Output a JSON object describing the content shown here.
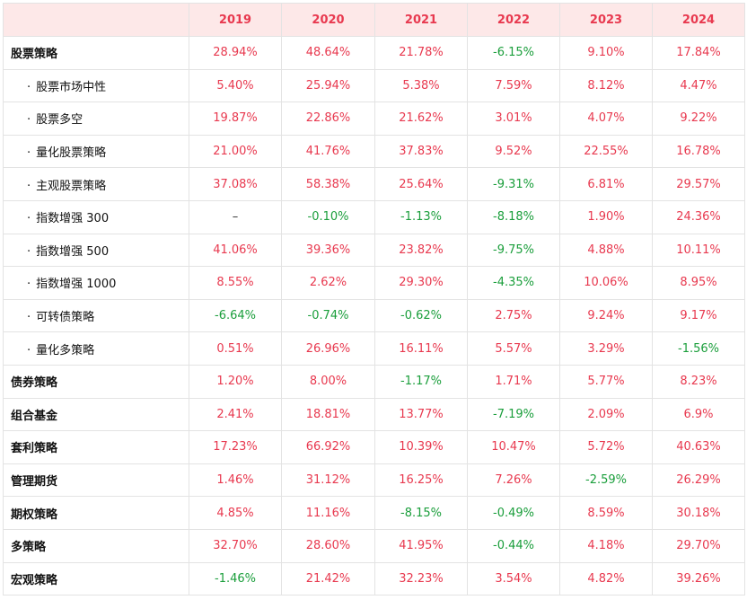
{
  "colors": {
    "header_bg": "#fde8e8",
    "header_text": "#e8394f",
    "positive": "#e8394f",
    "negative": "#1a9e3b",
    "border": "#e3e3e3"
  },
  "table": {
    "corner": "",
    "years": [
      "2019",
      "2020",
      "2021",
      "2022",
      "2023",
      "2024"
    ],
    "rows": [
      {
        "name": "股票策略",
        "sub": false,
        "values": [
          "28.94%",
          "48.64%",
          "21.78%",
          "-6.15%",
          "9.10%",
          "17.84%"
        ]
      },
      {
        "name": "股票市场中性",
        "sub": true,
        "values": [
          "5.40%",
          "25.94%",
          "5.38%",
          "7.59%",
          "8.12%",
          "4.47%"
        ]
      },
      {
        "name": "股票多空",
        "sub": true,
        "values": [
          "19.87%",
          "22.86%",
          "21.62%",
          "3.01%",
          "4.07%",
          "9.22%"
        ]
      },
      {
        "name": "量化股票策略",
        "sub": true,
        "values": [
          "21.00%",
          "41.76%",
          "37.83%",
          "9.52%",
          "22.55%",
          "16.78%"
        ]
      },
      {
        "name": "主观股票策略",
        "sub": true,
        "values": [
          "37.08%",
          "58.38%",
          "25.64%",
          "-9.31%",
          "6.81%",
          "29.57%"
        ]
      },
      {
        "name": "指数增强 300",
        "sub": true,
        "values": [
          "–",
          "-0.10%",
          "-1.13%",
          "-8.18%",
          "1.90%",
          "24.36%"
        ]
      },
      {
        "name": "指数增强 500",
        "sub": true,
        "values": [
          "41.06%",
          "39.36%",
          "23.82%",
          "-9.75%",
          "4.88%",
          "10.11%"
        ]
      },
      {
        "name": "指数增强 1000",
        "sub": true,
        "values": [
          "8.55%",
          "2.62%",
          "29.30%",
          "-4.35%",
          "10.06%",
          "8.95%"
        ]
      },
      {
        "name": "可转债策略",
        "sub": true,
        "values": [
          "-6.64%",
          "-0.74%",
          "-0.62%",
          "2.75%",
          "9.24%",
          "9.17%"
        ]
      },
      {
        "name": "量化多策略",
        "sub": true,
        "values": [
          "0.51%",
          "26.96%",
          "16.11%",
          "5.57%",
          "3.29%",
          "-1.56%"
        ]
      },
      {
        "name": "债券策略",
        "sub": false,
        "values": [
          "1.20%",
          "8.00%",
          "-1.17%",
          "1.71%",
          "5.77%",
          "8.23%"
        ]
      },
      {
        "name": "组合基金",
        "sub": false,
        "values": [
          "2.41%",
          "18.81%",
          "13.77%",
          "-7.19%",
          "2.09%",
          "6.9%"
        ]
      },
      {
        "name": "套利策略",
        "sub": false,
        "values": [
          "17.23%",
          "66.92%",
          "10.39%",
          "10.47%",
          "5.72%",
          "40.63%"
        ]
      },
      {
        "name": "管理期货",
        "sub": false,
        "values": [
          "1.46%",
          "31.12%",
          "16.25%",
          "7.26%",
          "-2.59%",
          "26.29%"
        ]
      },
      {
        "name": "期权策略",
        "sub": false,
        "values": [
          "4.85%",
          "11.16%",
          "-8.15%",
          "-0.49%",
          "8.59%",
          "30.18%"
        ]
      },
      {
        "name": "多策略",
        "sub": false,
        "values": [
          "32.70%",
          "28.60%",
          "41.95%",
          "-0.44%",
          "4.18%",
          "29.70%"
        ]
      },
      {
        "name": "宏观策略",
        "sub": false,
        "values": [
          "-1.46%",
          "21.42%",
          "32.23%",
          "3.54%",
          "4.82%",
          "39.26%"
        ]
      }
    ]
  }
}
